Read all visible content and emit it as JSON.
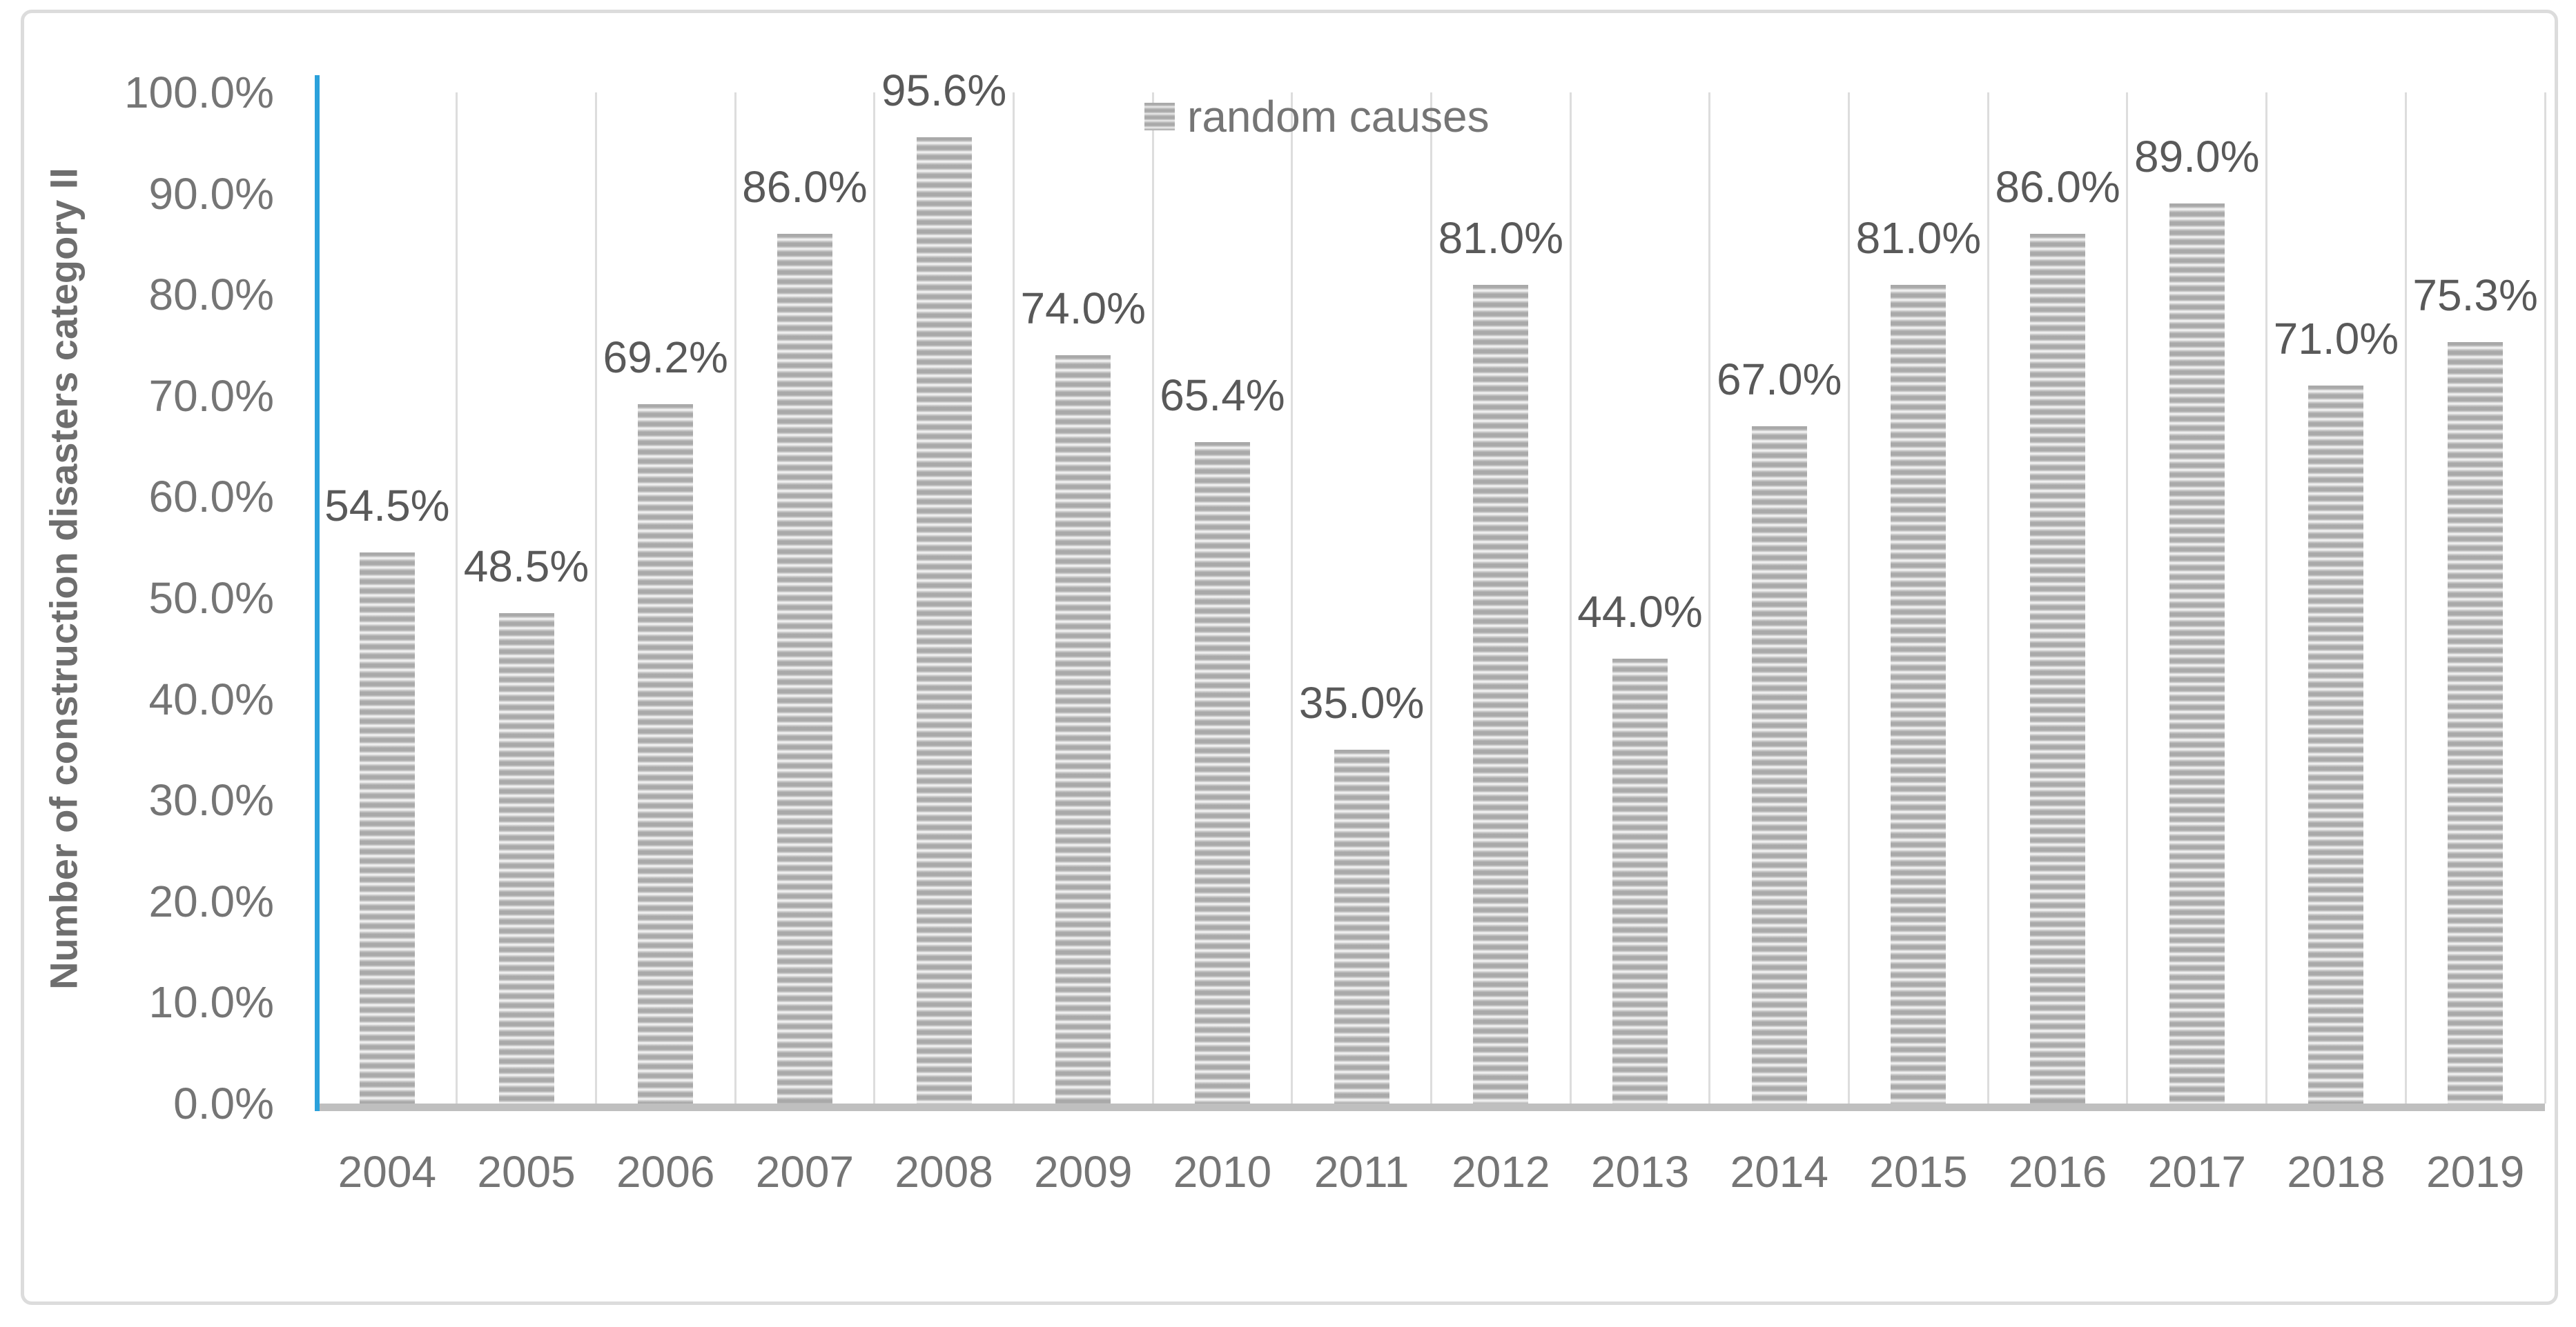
{
  "chart_data": {
    "type": "bar",
    "title": "",
    "ylabel": "Number of construction disasters category II",
    "xlabel": "",
    "legend": [
      {
        "label": "random causes",
        "position": "top"
      }
    ],
    "categories": [
      "2004",
      "2005",
      "2006",
      "2007",
      "2008",
      "2009",
      "2010",
      "2011",
      "2012",
      "2013",
      "2014",
      "2015",
      "2016",
      "2017",
      "2018",
      "2019"
    ],
    "series": [
      {
        "name": "random causes",
        "values": [
          54.5,
          48.5,
          69.2,
          86.0,
          95.6,
          74.0,
          65.4,
          35.0,
          81.0,
          44.0,
          67.0,
          81.0,
          86.0,
          89.0,
          71.0,
          75.3
        ],
        "data_labels": [
          "54.5%",
          "48.5%",
          "69.2%",
          "86.0%",
          "95.6%",
          "74.0%",
          "65.4%",
          "35.0%",
          "81.0%",
          "44.0%",
          "67.0%",
          "81.0%",
          "86.0%",
          "89.0%",
          "71.0%",
          "75.3%"
        ]
      }
    ],
    "y_ticks": [
      {
        "value": 0,
        "label": "0.0%"
      },
      {
        "value": 10,
        "label": "10.0%"
      },
      {
        "value": 20,
        "label": "20.0%"
      },
      {
        "value": 30,
        "label": "30.0%"
      },
      {
        "value": 40,
        "label": "40.0%"
      },
      {
        "value": 50,
        "label": "50.0%"
      },
      {
        "value": 60,
        "label": "60.0%"
      },
      {
        "value": 70,
        "label": "70.0%"
      },
      {
        "value": 80,
        "label": "80.0%"
      },
      {
        "value": 90,
        "label": "90.0%"
      },
      {
        "value": 100,
        "label": "100.0%"
      }
    ],
    "ylim": [
      0,
      100
    ],
    "grid": "vertical-category-gridlines",
    "bar_fill_style": "horizontal-stripe-pattern"
  },
  "colors": {
    "bar_stripe_dark": "#A9A9A9",
    "bar_stripe_light": "#EFEFEF",
    "y_axis_line": "#2BA1DB",
    "x_axis_line": "#BFBFBF",
    "gridline": "#DDDDDD",
    "frame_border": "#DCDCDC",
    "data_label_text": "#595959",
    "tick_label_text": "#757575",
    "axis_title_text": "#6E6E6E",
    "background": "#FFFFFF"
  }
}
